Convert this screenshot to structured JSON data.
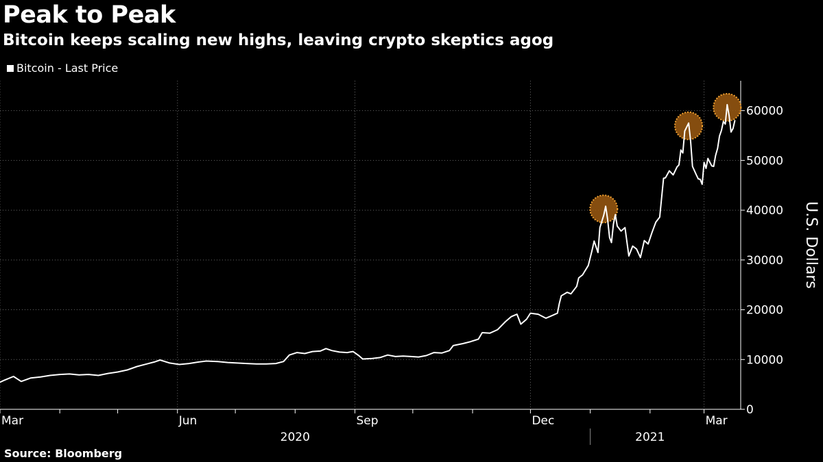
{
  "title": "Peak to Peak",
  "subtitle": "Bitcoin keeps scaling new highs, leaving crypto skeptics agog",
  "legend": {
    "label": "Bitcoin - Last Price"
  },
  "source": "Source: Bloomberg",
  "colors": {
    "background": "#000000",
    "line": "#ffffff",
    "grid": "#666666",
    "highlight": "#9c5a12",
    "highlight_border": "#f0a030"
  },
  "chart_data": {
    "type": "line",
    "title": "Peak to Peak",
    "subtitle": "Bitcoin keeps scaling new highs, leaving crypto skeptics agog",
    "ylabel": "U.S. Dollars",
    "ylim": [
      0,
      66000
    ],
    "yticks": [
      0,
      10000,
      20000,
      30000,
      40000,
      50000,
      60000
    ],
    "xlim": [
      "2020-03-01",
      "2021-03-20"
    ],
    "xtick_labels": [
      {
        "label": "Mar",
        "date": "2020-03-01"
      },
      {
        "label": "Jun",
        "date": "2020-06-01"
      },
      {
        "label": "Sep",
        "date": "2020-09-01"
      },
      {
        "label": "Dec",
        "date": "2020-12-01"
      },
      {
        "label": "Mar",
        "date": "2021-03-01"
      }
    ],
    "year_labels": [
      {
        "label": "2020",
        "date": "2020-08-01"
      },
      {
        "label": "2021",
        "date": "2021-02-01"
      }
    ],
    "year_divider": "2021-01-01",
    "grid": true,
    "legend_position": "top-left",
    "series": [
      {
        "name": "Bitcoin - Last Price",
        "points": [
          [
            "2020-02-27",
            4900
          ],
          [
            "2020-03-03",
            5800
          ],
          [
            "2020-03-08",
            6600
          ],
          [
            "2020-03-12",
            5600
          ],
          [
            "2020-03-17",
            6300
          ],
          [
            "2020-03-22",
            6500
          ],
          [
            "2020-03-27",
            6800
          ],
          [
            "2020-04-01",
            7000
          ],
          [
            "2020-04-06",
            7100
          ],
          [
            "2020-04-11",
            6900
          ],
          [
            "2020-04-16",
            7000
          ],
          [
            "2020-04-21",
            6800
          ],
          [
            "2020-04-26",
            7200
          ],
          [
            "2020-05-01",
            7500
          ],
          [
            "2020-05-06",
            7900
          ],
          [
            "2020-05-11",
            8600
          ],
          [
            "2020-05-16",
            9100
          ],
          [
            "2020-05-20",
            9500
          ],
          [
            "2020-05-23",
            9900
          ],
          [
            "2020-05-28",
            9300
          ],
          [
            "2020-06-02",
            9000
          ],
          [
            "2020-06-07",
            9200
          ],
          [
            "2020-06-12",
            9500
          ],
          [
            "2020-06-16",
            9700
          ],
          [
            "2020-06-22",
            9600
          ],
          [
            "2020-06-27",
            9400
          ],
          [
            "2020-07-02",
            9300
          ],
          [
            "2020-07-07",
            9200
          ],
          [
            "2020-07-12",
            9100
          ],
          [
            "2020-07-17",
            9100
          ],
          [
            "2020-07-22",
            9200
          ],
          [
            "2020-07-26",
            9600
          ],
          [
            "2020-07-29",
            10900
          ],
          [
            "2020-08-02",
            11400
          ],
          [
            "2020-08-06",
            11200
          ],
          [
            "2020-08-10",
            11600
          ],
          [
            "2020-08-14",
            11700
          ],
          [
            "2020-08-17",
            12200
          ],
          [
            "2020-08-20",
            11800
          ],
          [
            "2020-08-24",
            11500
          ],
          [
            "2020-08-28",
            11400
          ],
          [
            "2020-08-31",
            11600
          ],
          [
            "2020-09-03",
            10800
          ],
          [
            "2020-09-05",
            10100
          ],
          [
            "2020-09-10",
            10200
          ],
          [
            "2020-09-14",
            10400
          ],
          [
            "2020-09-18",
            10900
          ],
          [
            "2020-09-22",
            10600
          ],
          [
            "2020-09-26",
            10700
          ],
          [
            "2020-09-30",
            10600
          ],
          [
            "2020-10-04",
            10500
          ],
          [
            "2020-10-08",
            10800
          ],
          [
            "2020-10-12",
            11400
          ],
          [
            "2020-10-16",
            11300
          ],
          [
            "2020-10-20",
            11800
          ],
          [
            "2020-10-22",
            12800
          ],
          [
            "2020-10-27",
            13200
          ],
          [
            "2020-10-31",
            13600
          ],
          [
            "2020-11-04",
            14100
          ],
          [
            "2020-11-06",
            15400
          ],
          [
            "2020-11-10",
            15300
          ],
          [
            "2020-11-14",
            16000
          ],
          [
            "2020-11-18",
            17600
          ],
          [
            "2020-11-21",
            18600
          ],
          [
            "2020-11-24",
            19100
          ],
          [
            "2020-11-26",
            17100
          ],
          [
            "2020-11-29",
            18100
          ],
          [
            "2020-12-01",
            19300
          ],
          [
            "2020-12-05",
            19100
          ],
          [
            "2020-12-09",
            18300
          ],
          [
            "2020-12-12",
            18800
          ],
          [
            "2020-12-15",
            19300
          ],
          [
            "2020-12-16",
            21300
          ],
          [
            "2020-12-17",
            22800
          ],
          [
            "2020-12-20",
            23500
          ],
          [
            "2020-12-22",
            23200
          ],
          [
            "2020-12-25",
            24700
          ],
          [
            "2020-12-26",
            26400
          ],
          [
            "2020-12-28",
            27000
          ],
          [
            "2020-12-31",
            28900
          ],
          [
            "2021-01-02",
            32000
          ],
          [
            "2021-01-03",
            33800
          ],
          [
            "2021-01-05",
            31500
          ],
          [
            "2021-01-06",
            36500
          ],
          [
            "2021-01-08",
            39000
          ],
          [
            "2021-01-09",
            40800
          ],
          [
            "2021-01-10",
            38200
          ],
          [
            "2021-01-11",
            34500
          ],
          [
            "2021-01-12",
            33500
          ],
          [
            "2021-01-13",
            37200
          ],
          [
            "2021-01-14",
            39100
          ],
          [
            "2021-01-15",
            36800
          ],
          [
            "2021-01-17",
            35800
          ],
          [
            "2021-01-19",
            36500
          ],
          [
            "2021-01-21",
            30800
          ],
          [
            "2021-01-23",
            32800
          ],
          [
            "2021-01-25",
            32200
          ],
          [
            "2021-01-27",
            30500
          ],
          [
            "2021-01-29",
            33900
          ],
          [
            "2021-01-31",
            33200
          ],
          [
            "2021-02-02",
            35500
          ],
          [
            "2021-02-04",
            37600
          ],
          [
            "2021-02-06",
            38600
          ],
          [
            "2021-02-08",
            46400
          ],
          [
            "2021-02-09",
            46500
          ],
          [
            "2021-02-11",
            47900
          ],
          [
            "2021-02-13",
            47100
          ],
          [
            "2021-02-15",
            48700
          ],
          [
            "2021-02-16",
            49100
          ],
          [
            "2021-02-17",
            52100
          ],
          [
            "2021-02-18",
            51500
          ],
          [
            "2021-02-19",
            55900
          ],
          [
            "2021-02-21",
            57500
          ],
          [
            "2021-02-22",
            54000
          ],
          [
            "2021-02-23",
            48800
          ],
          [
            "2021-02-25",
            47100
          ],
          [
            "2021-02-26",
            46300
          ],
          [
            "2021-02-27",
            46200
          ],
          [
            "2021-02-28",
            45200
          ],
          [
            "2021-03-01",
            49600
          ],
          [
            "2021-03-02",
            48400
          ],
          [
            "2021-03-03",
            50400
          ],
          [
            "2021-03-05",
            48900
          ],
          [
            "2021-03-06",
            48800
          ],
          [
            "2021-03-07",
            51000
          ],
          [
            "2021-03-08",
            52400
          ],
          [
            "2021-03-09",
            54900
          ],
          [
            "2021-03-10",
            56000
          ],
          [
            "2021-03-11",
            57800
          ],
          [
            "2021-03-12",
            57300
          ],
          [
            "2021-03-13",
            61200
          ],
          [
            "2021-03-14",
            59000
          ],
          [
            "2021-03-15",
            55700
          ],
          [
            "2021-03-16",
            56400
          ],
          [
            "2021-03-17",
            58100
          ]
        ]
      }
    ],
    "annotations": [
      {
        "type": "circle",
        "date": "2021-01-08",
        "value": 40800
      },
      {
        "type": "circle",
        "date": "2021-02-21",
        "value": 57500
      },
      {
        "type": "circle",
        "date": "2021-03-13",
        "value": 61200
      }
    ]
  }
}
